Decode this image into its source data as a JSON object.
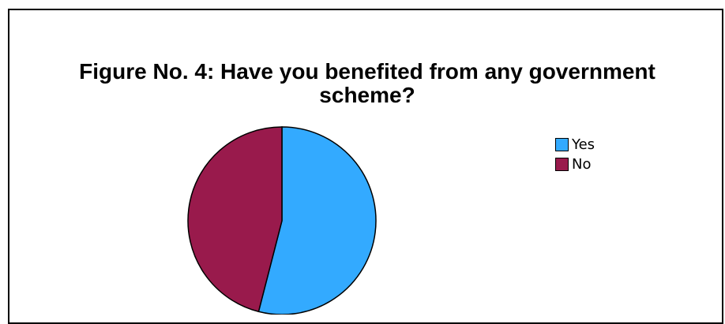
{
  "chart_data": {
    "type": "pie",
    "title": "Figure No. 4: Have you benefited from any government scheme?",
    "title_lines": [
      "Figure No. 4: Have you benefited from any government",
      "scheme?"
    ],
    "slices": [
      {
        "label": "Yes",
        "value": 54,
        "color": "#33AAFF"
      },
      {
        "label": "No",
        "value": 46,
        "color": "#991A4C"
      }
    ],
    "legend_position": "right"
  }
}
